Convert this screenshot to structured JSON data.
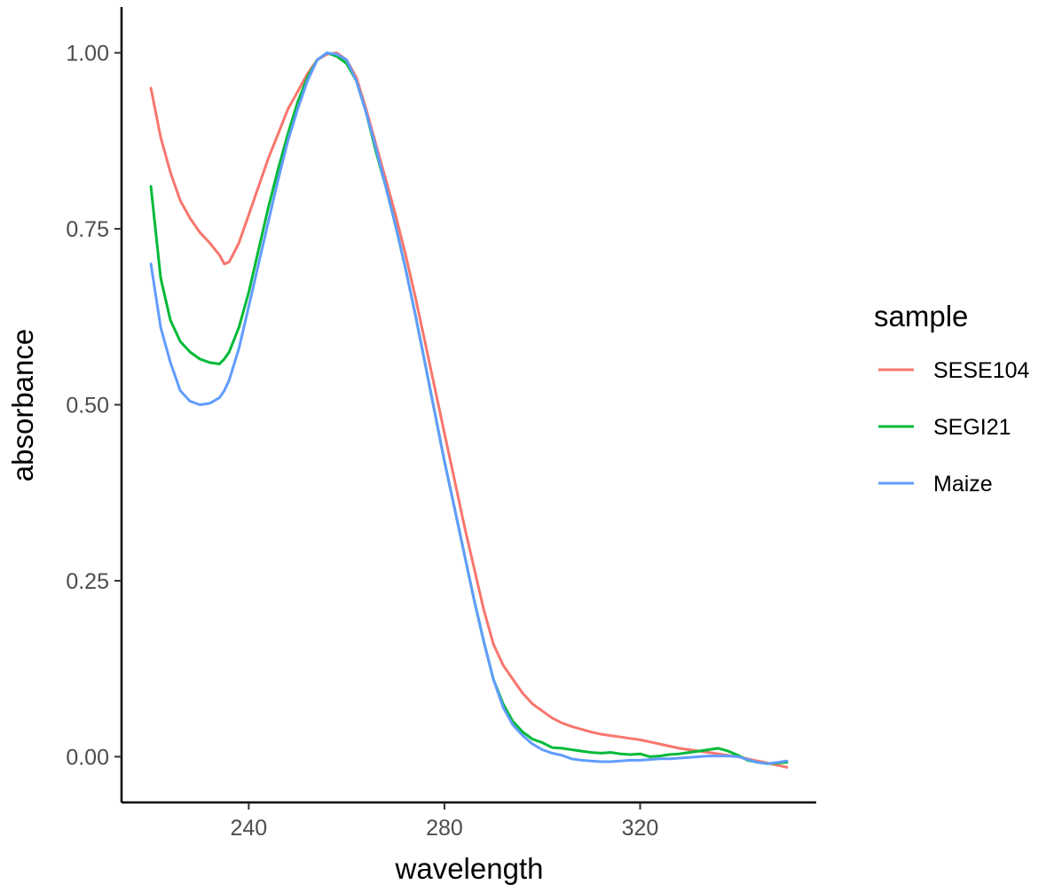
{
  "chart_data": {
    "type": "line",
    "title": "",
    "xlabel": "wavelength",
    "ylabel": "absorbance",
    "xlim": [
      214,
      356
    ],
    "ylim": [
      -0.065,
      1.065
    ],
    "x_ticks": [
      240,
      280,
      320
    ],
    "x_tick_labels": [
      "240",
      "280",
      "320"
    ],
    "y_ticks": [
      0,
      0.25,
      0.5,
      0.75,
      1
    ],
    "y_tick_labels": [
      "0.00",
      "0.25",
      "0.50",
      "0.75",
      "1.00"
    ],
    "grid": false,
    "legend": {
      "title": "sample",
      "position": "right"
    },
    "series": [
      {
        "name": "SESE104",
        "color": "#F8766D",
        "x": [
          220,
          222,
          224,
          226,
          228,
          230,
          232,
          234,
          235,
          236,
          238,
          240,
          242,
          244,
          246,
          248,
          250,
          252,
          254,
          256,
          258,
          260,
          262,
          264,
          266,
          268,
          270,
          272,
          274,
          276,
          278,
          280,
          282,
          284,
          286,
          288,
          290,
          292,
          294,
          296,
          298,
          300,
          302,
          304,
          306,
          308,
          310,
          312,
          314,
          316,
          318,
          320,
          322,
          324,
          326,
          328,
          330,
          332,
          334,
          336,
          338,
          340,
          342,
          344,
          346,
          348,
          350
        ],
        "y": [
          0.95,
          0.88,
          0.83,
          0.79,
          0.765,
          0.745,
          0.73,
          0.713,
          0.7,
          0.703,
          0.73,
          0.77,
          0.81,
          0.85,
          0.885,
          0.92,
          0.945,
          0.97,
          0.99,
          0.998,
          1.0,
          0.99,
          0.965,
          0.92,
          0.87,
          0.82,
          0.77,
          0.715,
          0.655,
          0.59,
          0.525,
          0.46,
          0.395,
          0.33,
          0.27,
          0.21,
          0.16,
          0.13,
          0.11,
          0.09,
          0.075,
          0.065,
          0.055,
          0.048,
          0.043,
          0.039,
          0.035,
          0.032,
          0.03,
          0.028,
          0.026,
          0.024,
          0.021,
          0.018,
          0.015,
          0.012,
          0.01,
          0.008,
          0.006,
          0.004,
          0.002,
          0.0,
          -0.003,
          -0.006,
          -0.009,
          -0.012,
          -0.015
        ]
      },
      {
        "name": "SEGI21",
        "color": "#00BA38",
        "x": [
          220,
          222,
          224,
          226,
          228,
          230,
          232,
          234,
          235,
          236,
          238,
          240,
          242,
          244,
          246,
          248,
          250,
          252,
          254,
          256,
          258,
          260,
          262,
          264,
          266,
          268,
          270,
          272,
          274,
          276,
          278,
          280,
          282,
          284,
          286,
          288,
          290,
          292,
          294,
          296,
          298,
          300,
          302,
          304,
          306,
          308,
          310,
          312,
          314,
          316,
          318,
          320,
          322,
          324,
          326,
          328,
          330,
          332,
          334,
          336,
          338,
          340,
          342,
          344,
          346,
          348,
          350
        ],
        "y": [
          0.81,
          0.68,
          0.62,
          0.59,
          0.575,
          0.565,
          0.56,
          0.558,
          0.565,
          0.575,
          0.61,
          0.66,
          0.72,
          0.78,
          0.835,
          0.885,
          0.93,
          0.965,
          0.99,
          1.0,
          0.995,
          0.985,
          0.96,
          0.915,
          0.86,
          0.81,
          0.755,
          0.695,
          0.63,
          0.56,
          0.49,
          0.42,
          0.355,
          0.29,
          0.225,
          0.165,
          0.11,
          0.075,
          0.05,
          0.035,
          0.025,
          0.02,
          0.013,
          0.012,
          0.01,
          0.008,
          0.006,
          0.005,
          0.006,
          0.004,
          0.003,
          0.004,
          0.0,
          0.001,
          0.003,
          0.004,
          0.006,
          0.008,
          0.01,
          0.012,
          0.008,
          0.002,
          -0.005,
          -0.008,
          -0.01,
          -0.009,
          -0.008
        ]
      },
      {
        "name": "Maize",
        "color": "#619CFF",
        "x": [
          220,
          222,
          224,
          226,
          228,
          230,
          232,
          234,
          235,
          236,
          238,
          240,
          242,
          244,
          246,
          248,
          250,
          252,
          254,
          256,
          258,
          260,
          262,
          264,
          266,
          268,
          270,
          272,
          274,
          276,
          278,
          280,
          282,
          284,
          286,
          288,
          290,
          292,
          294,
          296,
          298,
          300,
          302,
          304,
          306,
          308,
          310,
          312,
          314,
          316,
          318,
          320,
          322,
          324,
          326,
          328,
          330,
          332,
          334,
          336,
          338,
          340,
          342,
          344,
          346,
          348,
          350
        ],
        "y": [
          0.7,
          0.61,
          0.56,
          0.52,
          0.505,
          0.5,
          0.502,
          0.51,
          0.52,
          0.535,
          0.58,
          0.64,
          0.7,
          0.76,
          0.82,
          0.875,
          0.92,
          0.96,
          0.99,
          1.0,
          0.998,
          0.99,
          0.96,
          0.915,
          0.865,
          0.81,
          0.755,
          0.695,
          0.63,
          0.56,
          0.49,
          0.42,
          0.355,
          0.29,
          0.225,
          0.165,
          0.11,
          0.07,
          0.045,
          0.03,
          0.018,
          0.01,
          0.005,
          0.002,
          -0.003,
          -0.005,
          -0.006,
          -0.007,
          -0.007,
          -0.006,
          -0.005,
          -0.005,
          -0.004,
          -0.003,
          -0.003,
          -0.002,
          -0.001,
          0.0,
          0.001,
          0.001,
          0.001,
          0.0,
          -0.004,
          -0.008,
          -0.01,
          -0.008,
          -0.006
        ]
      }
    ]
  }
}
